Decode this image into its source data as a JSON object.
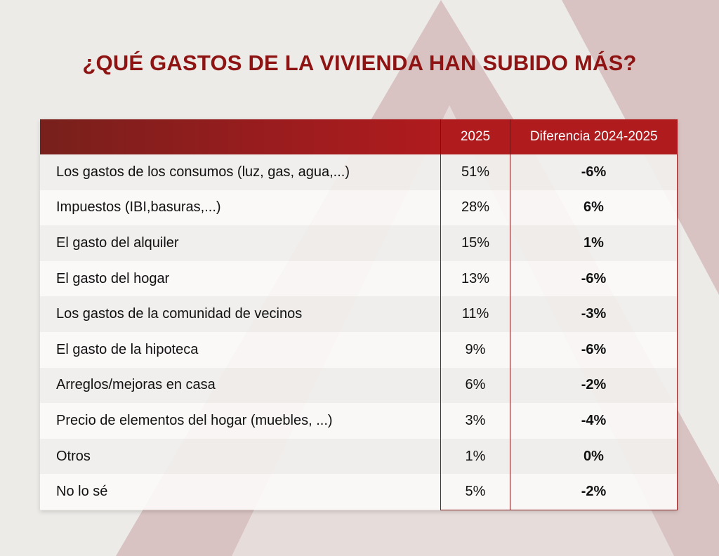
{
  "title": "¿QUÉ GASTOS DE LA VIVIENDA HAN SUBIDO MÁS?",
  "colors": {
    "accent": "#b01b1e",
    "title": "#8e1414",
    "background": "#edebe8",
    "shape": "#d9c3c2"
  },
  "chart_data": {
    "type": "table",
    "title": "¿QUÉ GASTOS DE LA VIVIENDA HAN SUBIDO MÁS?",
    "columns": [
      "",
      "2025",
      "Diferencia 2024-2025"
    ],
    "rows": [
      {
        "label": "Los gastos de los consumos (luz, gas, agua,...)",
        "v2025": "51%",
        "diff": "-6%"
      },
      {
        "label": "Impuestos (IBI,basuras,...)",
        "v2025": "28%",
        "diff": "6%"
      },
      {
        "label": "El gasto del alquiler",
        "v2025": "15%",
        "diff": "1%"
      },
      {
        "label": "El gasto del hogar",
        "v2025": "13%",
        "diff": "-6%"
      },
      {
        "label": "Los gastos de la comunidad de vecinos",
        "v2025": "11%",
        "diff": "-3%"
      },
      {
        "label": "El gasto de la hipoteca",
        "v2025": "9%",
        "diff": "-6%"
      },
      {
        "label": "Arreglos/mejoras en casa",
        "v2025": "6%",
        "diff": "-2%"
      },
      {
        "label": "Precio de elementos del hogar (muebles, ...)",
        "v2025": "3%",
        "diff": "-4%"
      },
      {
        "label": "Otros",
        "v2025": "1%",
        "diff": "0%"
      },
      {
        "label": "No lo sé",
        "v2025": "5%",
        "diff": "-2%"
      }
    ]
  }
}
